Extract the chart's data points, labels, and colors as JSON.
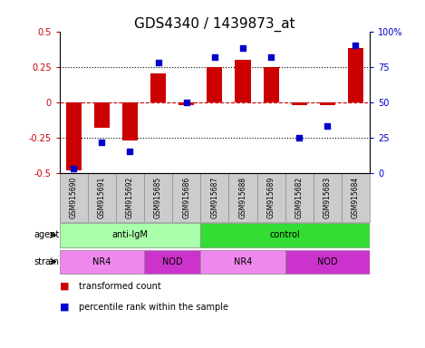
{
  "title": "GDS4340 / 1439873_at",
  "samples": [
    "GSM915690",
    "GSM915691",
    "GSM915692",
    "GSM915685",
    "GSM915686",
    "GSM915687",
    "GSM915688",
    "GSM915689",
    "GSM915682",
    "GSM915683",
    "GSM915684"
  ],
  "bar_values": [
    -0.48,
    -0.18,
    -0.27,
    0.2,
    -0.02,
    0.25,
    0.3,
    0.25,
    -0.02,
    -0.02,
    0.38
  ],
  "scatter_values": [
    3,
    22,
    15,
    78,
    50,
    82,
    88,
    82,
    25,
    33,
    90
  ],
  "ylim_left": [
    -0.5,
    0.5
  ],
  "ylim_right": [
    0,
    100
  ],
  "yticks_left": [
    -0.5,
    -0.25,
    0,
    0.25,
    0.5
  ],
  "yticks_right": [
    0,
    25,
    50,
    75,
    100
  ],
  "bar_color": "#CC0000",
  "scatter_color": "#0000CC",
  "hline_color": "#CC0000",
  "dotted_line_color": "#000000",
  "agent_labels": [
    {
      "label": "anti-IgM",
      "start": 0,
      "end": 5,
      "color": "#AAFFAA"
    },
    {
      "label": "control",
      "start": 5,
      "end": 11,
      "color": "#33DD33"
    }
  ],
  "strain_labels": [
    {
      "label": "NR4",
      "start": 0,
      "end": 3,
      "color": "#EE88EE"
    },
    {
      "label": "NOD",
      "start": 3,
      "end": 5,
      "color": "#CC33CC"
    },
    {
      "label": "NR4",
      "start": 5,
      "end": 8,
      "color": "#EE88EE"
    },
    {
      "label": "NOD",
      "start": 8,
      "end": 11,
      "color": "#CC33CC"
    }
  ],
  "legend_bar_color": "#CC0000",
  "legend_scatter_color": "#0000CC",
  "legend_bar_label": "transformed count",
  "legend_scatter_label": "percentile rank within the sample",
  "sample_bg": "#CCCCCC",
  "bg_color": "#FFFFFF",
  "tick_label_fontsize": 7,
  "title_fontsize": 11
}
